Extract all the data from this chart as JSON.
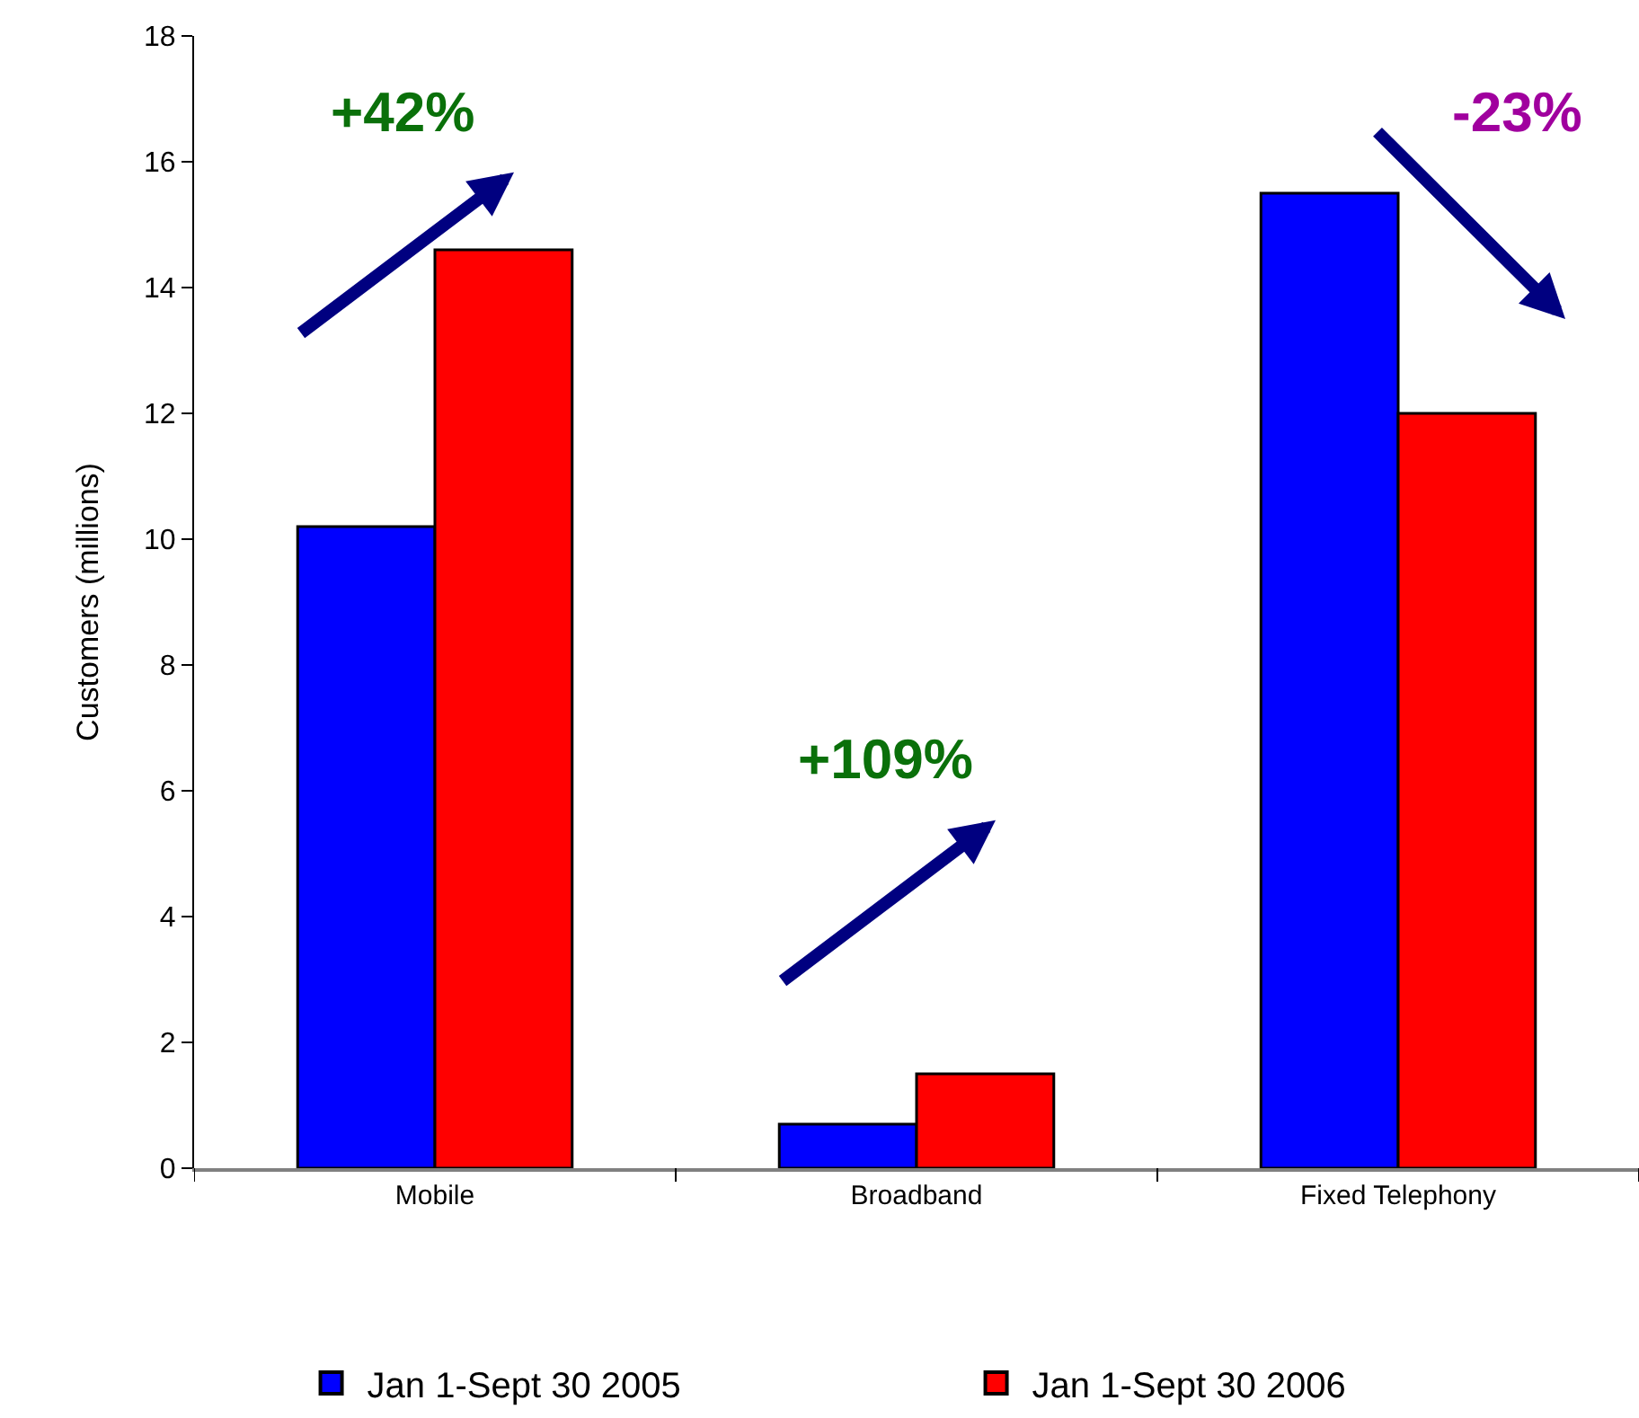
{
  "chart_data": {
    "type": "bar",
    "ylabel": "Customers (millions)",
    "categories": [
      "Mobile",
      "Broadband",
      "Fixed Telephony"
    ],
    "series": [
      {
        "name": "Jan 1-Sept 30 2005",
        "color": "#0000ff",
        "values": [
          10.2,
          0.7,
          15.5
        ]
      },
      {
        "name": "Jan 1-Sept 30 2006",
        "color": "#ff0000",
        "values": [
          14.6,
          1.5,
          12.0
        ]
      }
    ],
    "ylim": [
      0,
      18
    ],
    "yticks": [
      0,
      2,
      4,
      6,
      8,
      10,
      12,
      14,
      16,
      18
    ],
    "grid": false,
    "legend": "bottom",
    "annotations": [
      "+42%",
      "+109%",
      "-23%"
    ]
  }
}
